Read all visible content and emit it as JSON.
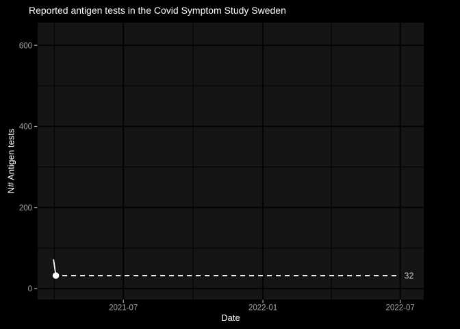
{
  "chart_data": {
    "type": "line",
    "title": "Reported antigen tests in the Covid Symptom Study Sweden",
    "xlabel": "Date",
    "ylabel": "N# Antigen tests",
    "x_tick_labels": [
      "2021-07",
      "2022-01",
      "2022-07"
    ],
    "x_tick_dates": [
      "2021-07-01",
      "2022-01-01",
      "2022-07-01"
    ],
    "x_minor_dates": [
      "2021-04-01",
      "2021-10-01",
      "2022-04-01"
    ],
    "x_range": [
      "2021-03-10",
      "2022-08-01"
    ],
    "y_ticks": [
      0,
      200,
      400,
      600
    ],
    "y_tick_labels": [
      "0",
      "200",
      "400",
      "600"
    ],
    "y_minor": [
      100,
      300,
      500
    ],
    "y_range": [
      -27,
      656
    ],
    "ylim": [
      0,
      600
    ],
    "grid": true,
    "legend": "none",
    "series": [
      {
        "name": "Reported antigen tests",
        "points": [
          {
            "date": "2021-03-31",
            "value": 71
          },
          {
            "date": "2021-04-03",
            "value": 32
          }
        ]
      }
    ],
    "annotation": {
      "type": "dashed-hline",
      "y": 32,
      "label": "32"
    },
    "colors": {
      "background": "#000000",
      "panel": "#151515",
      "grid_major": "#030303",
      "grid_minor": "#060606",
      "series": "#ffffff",
      "point": "#ffffff",
      "dashed_line": "#ffffff",
      "axis_text": "#a6a6a6",
      "tick_mark": "#b3b3b3",
      "axis_title": "#ffffff",
      "title": "#ffffff",
      "annotation_label": "#c2c2c2"
    }
  }
}
